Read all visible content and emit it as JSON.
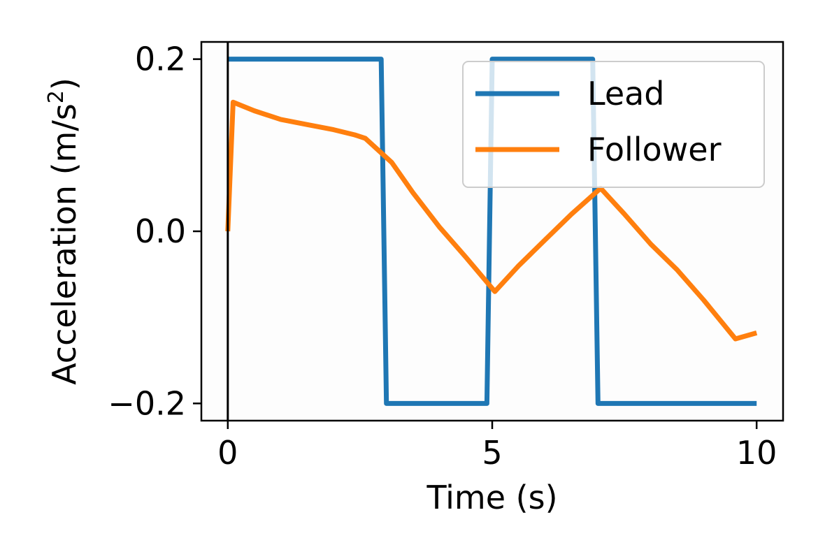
{
  "chart_data": {
    "type": "line",
    "xlabel": "Time (s)",
    "ylabel": "Acceleration (m/s",
    "ylabel_sup": "2",
    "ylabel_close": ")",
    "xlim": [
      -0.5,
      10.5
    ],
    "ylim": [
      -0.22,
      0.22
    ],
    "x_ticks": [
      0,
      5,
      10
    ],
    "x_tick_labels": [
      "0",
      "5",
      "10"
    ],
    "y_ticks": [
      0.2,
      0.0,
      -0.2
    ],
    "y_tick_labels": [
      "0.2",
      "0.0",
      "−0.2"
    ],
    "vline_x": 0,
    "grid": false,
    "legend_position": "top-right",
    "series": [
      {
        "name": "Lead",
        "color": "#1f77b4",
        "x": [
          0,
          2.9,
          3.0,
          4.9,
          5.0,
          6.9,
          7.0,
          10.0
        ],
        "y": [
          0.2,
          0.2,
          -0.2,
          -0.2,
          0.2,
          0.2,
          -0.2,
          -0.2
        ]
      },
      {
        "name": "Follower",
        "color": "#ff7f0e",
        "x": [
          0,
          0.1,
          0.5,
          1.0,
          1.5,
          2.0,
          2.4,
          2.6,
          3.1,
          3.5,
          4.0,
          4.5,
          5.05,
          5.5,
          6.0,
          6.5,
          7.05,
          7.2,
          7.5,
          8.0,
          8.5,
          9.0,
          9.6,
          10.0
        ],
        "y": [
          0.0,
          0.15,
          0.14,
          0.13,
          0.124,
          0.118,
          0.112,
          0.108,
          0.08,
          0.045,
          0.005,
          -0.03,
          -0.07,
          -0.04,
          -0.01,
          0.02,
          0.05,
          0.04,
          0.02,
          -0.015,
          -0.045,
          -0.08,
          -0.125,
          -0.118
        ]
      }
    ]
  }
}
